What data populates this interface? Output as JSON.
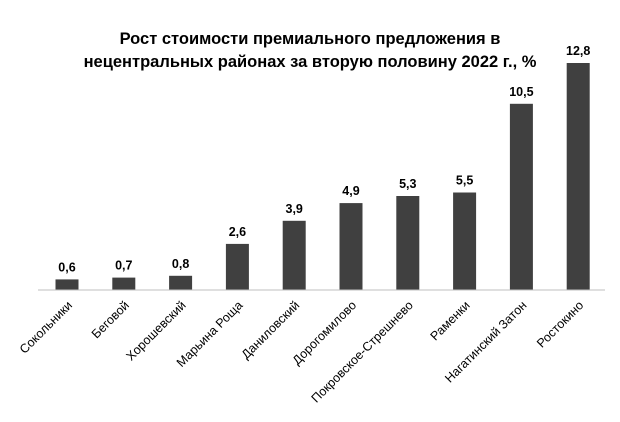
{
  "chart_data": {
    "type": "bar",
    "title_lines": [
      "Рост стоимости премиального предложения в",
      "нецентральных районах за вторую половину 2022 г., %"
    ],
    "categories": [
      "Сокольники",
      "Беговой",
      "Хорошевский",
      "Марьина Роща",
      "Даниловский",
      "Дорогомилово",
      "Покровское-Стрешнево",
      "Раменки",
      "Нагатинский Затон",
      "Ростокино"
    ],
    "values": [
      0.6,
      0.7,
      0.8,
      2.6,
      3.9,
      4.9,
      5.3,
      5.5,
      10.5,
      12.8
    ],
    "value_labels": [
      "0,6",
      "0,7",
      "0,8",
      "2,6",
      "3,9",
      "4,9",
      "5,3",
      "5,5",
      "10,5",
      "12,8"
    ],
    "xlabel": "",
    "ylabel": "",
    "ylim": [
      0,
      12.8
    ],
    "grid": false,
    "legend": "none",
    "colors": {
      "bar": "#404040",
      "axis": "#bfbfbf",
      "text": "#000000"
    }
  }
}
